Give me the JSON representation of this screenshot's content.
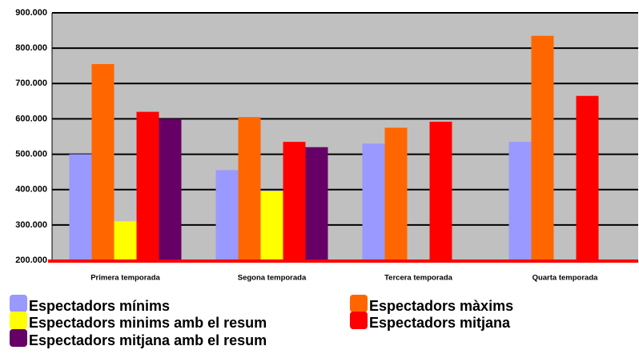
{
  "chart_data": {
    "type": "bar",
    "categories": [
      "Primera temporada",
      "Segona temporada",
      "Tercera temporada",
      "Quarta temporada"
    ],
    "series": [
      {
        "name": "Espectadors mínims",
        "color": "#9999ff",
        "values": [
          500000,
          455000,
          530000,
          535000
        ]
      },
      {
        "name": "Espectadors màxims",
        "color": "#ff6600",
        "values": [
          755000,
          605000,
          575000,
          835000
        ]
      },
      {
        "name": "Espectadors minims amb el resum",
        "color": "#ffff00",
        "values": [
          310000,
          395000,
          null,
          null
        ]
      },
      {
        "name": "Espectadors mitjana",
        "color": "#ff0000",
        "values": [
          620000,
          535000,
          592000,
          665000
        ]
      },
      {
        "name": "Espectadors mitjana amb el resum",
        "color": "#660066",
        "values": [
          600000,
          520000,
          null,
          null
        ]
      }
    ],
    "ylim": [
      200000,
      900000
    ],
    "yticks": [
      {
        "value": 200000,
        "label": "200.000"
      },
      {
        "value": 300000,
        "label": "300.000"
      },
      {
        "value": 400000,
        "label": "400.000"
      },
      {
        "value": 500000,
        "label": "500.000"
      },
      {
        "value": 600000,
        "label": "600.000"
      },
      {
        "value": 700000,
        "label": "700.000"
      },
      {
        "value": 800000,
        "label": "800.000"
      },
      {
        "value": 900000,
        "label": "900.000"
      }
    ],
    "grid": true
  }
}
